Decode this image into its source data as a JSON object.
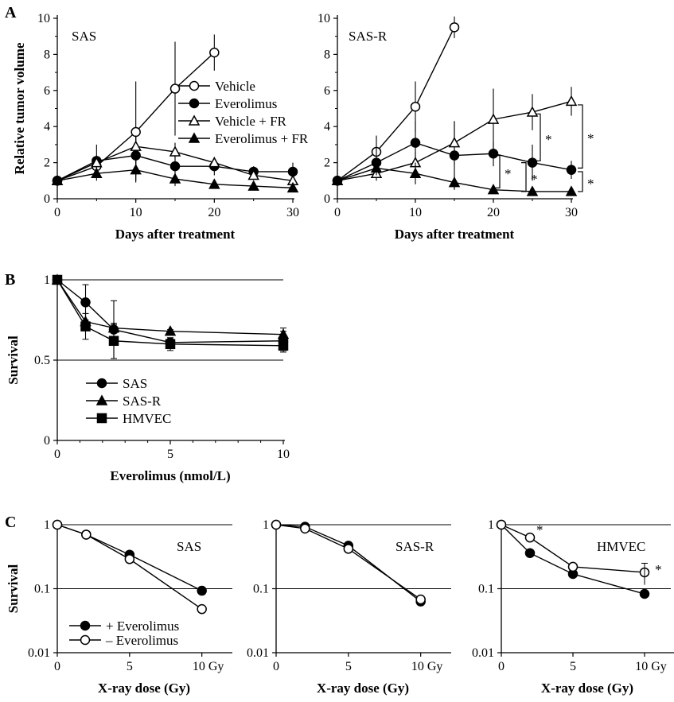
{
  "panels": {
    "a": "A",
    "b": "B",
    "c": "C"
  },
  "significance_mark": "*",
  "chart_data": [
    {
      "id": "A1",
      "type": "line",
      "label": "SAS",
      "xlabel": "Days after treatment",
      "ylabel": "Relative tumor volume",
      "xlim": [
        0,
        30
      ],
      "ylim": [
        0,
        10
      ],
      "xticks": [
        "0",
        "10",
        "20",
        "30"
      ],
      "yticks": [
        "0",
        "2",
        "4",
        "6",
        "8",
        "10"
      ],
      "series": [
        {
          "name": "Vehicle",
          "marker": "circle-open",
          "x": [
            0,
            5,
            10,
            15,
            20
          ],
          "y": [
            1.0,
            1.8,
            3.7,
            6.1,
            8.1
          ],
          "err": [
            0,
            0.4,
            2.8,
            2.6,
            1.0
          ]
        },
        {
          "name": "Everolimus",
          "marker": "circle-filled",
          "x": [
            0,
            5,
            10,
            15,
            20,
            25,
            30
          ],
          "y": [
            1.0,
            2.1,
            2.4,
            1.8,
            1.8,
            1.5,
            1.5
          ],
          "err": [
            0,
            0.9,
            1.1,
            1.0,
            0.5,
            0.3,
            0.5
          ]
        },
        {
          "name": "Vehicle + FR",
          "marker": "triangle-open",
          "x": [
            0,
            5,
            10,
            15,
            20,
            25,
            30
          ],
          "y": [
            1.0,
            2.0,
            2.9,
            2.6,
            2.0,
            1.3,
            1.0
          ],
          "err": [
            0,
            0.4,
            0.5,
            0.5,
            0.3,
            0.2,
            0.2
          ]
        },
        {
          "name": "Everolimus + FR",
          "marker": "triangle-filled",
          "x": [
            0,
            5,
            10,
            15,
            20,
            25,
            30
          ],
          "y": [
            1.0,
            1.4,
            1.6,
            1.1,
            0.8,
            0.7,
            0.6
          ],
          "err": [
            0,
            0.4,
            0.6,
            0.4,
            0.2,
            0.2,
            0.2
          ]
        }
      ],
      "legend": "middle-right"
    },
    {
      "id": "A2",
      "type": "line",
      "label": "SAS-R",
      "xlabel": "Days after treatment",
      "ylabel": "",
      "xlim": [
        0,
        30
      ],
      "ylim": [
        0,
        10
      ],
      "xticks": [
        "0",
        "10",
        "20",
        "30"
      ],
      "yticks": [
        "0",
        "2",
        "4",
        "6",
        "8",
        "10"
      ],
      "series": [
        {
          "name": "Vehicle",
          "marker": "circle-open",
          "x": [
            0,
            5,
            10,
            15
          ],
          "y": [
            1.0,
            2.6,
            5.1,
            9.5
          ],
          "err": [
            0,
            0.9,
            1.4,
            0.6
          ]
        },
        {
          "name": "Everolimus",
          "marker": "circle-filled",
          "x": [
            0,
            5,
            10,
            15,
            20,
            25,
            30
          ],
          "y": [
            1.0,
            2.0,
            3.1,
            2.4,
            2.5,
            2.0,
            1.6
          ],
          "err": [
            0,
            0.8,
            1.2,
            1.9,
            0.7,
            1.0,
            0.5
          ]
        },
        {
          "name": "Vehicle + FR",
          "marker": "triangle-open",
          "x": [
            0,
            5,
            10,
            15,
            20,
            25,
            30
          ],
          "y": [
            1.0,
            1.4,
            2.0,
            3.1,
            4.4,
            4.8,
            5.4
          ],
          "err": [
            0,
            0.4,
            0.6,
            1.2,
            1.7,
            1.0,
            0.8
          ]
        },
        {
          "name": "Everolimus + FR",
          "marker": "triangle-filled",
          "x": [
            0,
            5,
            10,
            15,
            20,
            25,
            30
          ],
          "y": [
            1.0,
            1.7,
            1.4,
            0.9,
            0.5,
            0.4,
            0.4
          ],
          "err": [
            0,
            0.4,
            0.6,
            0.4,
            0.2,
            0.2,
            0.2
          ]
        }
      ],
      "annotations": "* significance brackets between groups on days 20, 25 and 30"
    },
    {
      "id": "B",
      "type": "line",
      "xlabel": "Everolimus (nmol/L)",
      "ylabel": "Survival",
      "xlim": [
        0,
        10
      ],
      "ylim": [
        0,
        1
      ],
      "xticks": [
        "0",
        "5",
        "10"
      ],
      "yticks": [
        "0",
        "0.5",
        "1"
      ],
      "grid": "horizontal at 0.5 and 1",
      "series": [
        {
          "name": "SAS",
          "marker": "circle-filled",
          "x": [
            0,
            1.25,
            2.5,
            5,
            10
          ],
          "y": [
            1.0,
            0.86,
            0.69,
            0.61,
            0.62
          ],
          "err": [
            0,
            0.11,
            0.18,
            0.02,
            0.06
          ]
        },
        {
          "name": "SAS-R",
          "marker": "triangle-filled",
          "x": [
            0,
            1.25,
            2.5,
            5,
            10
          ],
          "y": [
            1.0,
            0.74,
            0.7,
            0.68,
            0.66
          ],
          "err": [
            0,
            0.05,
            0.02,
            0.01,
            0.04
          ]
        },
        {
          "name": "HMVEC",
          "marker": "square-filled",
          "x": [
            0,
            1.25,
            2.5,
            5,
            10
          ],
          "y": [
            1.0,
            0.71,
            0.62,
            0.6,
            0.59
          ],
          "err": [
            0,
            0.08,
            0.11,
            0.04,
            0.04
          ]
        }
      ],
      "legend": "bottom-left"
    },
    {
      "id": "C1",
      "type": "line",
      "scale": "log",
      "label": "SAS",
      "xlabel": "X-ray dose (Gy)",
      "ylabel": "Survival",
      "xlim": [
        0,
        12
      ],
      "ylim": [
        0.01,
        1
      ],
      "xticks": [
        "0",
        "5",
        "10 Gy"
      ],
      "yticks": [
        "0.01",
        "0.1",
        "1"
      ],
      "grid": "horizontal at 0.1 and 1",
      "series": [
        {
          "name": "+ Everolimus",
          "marker": "circle-filled",
          "x": [
            0,
            2,
            5,
            10
          ],
          "y": [
            1.0,
            0.7,
            0.34,
            0.093
          ]
        },
        {
          "name": "– Everolimus",
          "marker": "circle-open",
          "x": [
            0,
            2,
            5,
            10
          ],
          "y": [
            1.0,
            0.7,
            0.29,
            0.048
          ]
        }
      ],
      "legend": "bottom-left"
    },
    {
      "id": "C2",
      "type": "line",
      "scale": "log",
      "label": "SAS-R",
      "xlabel": "X-ray dose (Gy)",
      "ylabel": "",
      "xlim": [
        0,
        12
      ],
      "ylim": [
        0.01,
        1
      ],
      "xticks": [
        "0",
        "5",
        "10 Gy"
      ],
      "yticks": [
        "0.01",
        "0.1",
        "1"
      ],
      "grid": "horizontal at 0.1 and 1",
      "series": [
        {
          "name": "+ Everolimus",
          "marker": "circle-filled",
          "x": [
            0,
            2,
            5,
            10
          ],
          "y": [
            1.0,
            0.93,
            0.47,
            0.063
          ]
        },
        {
          "name": "– Everolimus",
          "marker": "circle-open",
          "x": [
            0,
            2,
            5,
            10
          ],
          "y": [
            1.0,
            0.87,
            0.42,
            0.068
          ]
        }
      ]
    },
    {
      "id": "C3",
      "type": "line",
      "scale": "log",
      "label": "HMVEC",
      "xlabel": "X-ray dose (Gy)",
      "ylabel": "",
      "xlim": [
        0,
        12
      ],
      "ylim": [
        0.01,
        1
      ],
      "xticks": [
        "0",
        "5",
        "10 Gy"
      ],
      "yticks": [
        "0.01",
        "0.1",
        "1"
      ],
      "grid": "horizontal at 0.1 and 1",
      "series": [
        {
          "name": "+ Everolimus",
          "marker": "circle-filled",
          "x": [
            0,
            2,
            5,
            10
          ],
          "y": [
            1.0,
            0.36,
            0.17,
            0.083
          ]
        },
        {
          "name": "– Everolimus",
          "marker": "circle-open",
          "x": [
            0,
            2,
            5,
            10
          ],
          "y": [
            1.0,
            0.63,
            0.22,
            0.18
          ]
        }
      ]
    }
  ]
}
